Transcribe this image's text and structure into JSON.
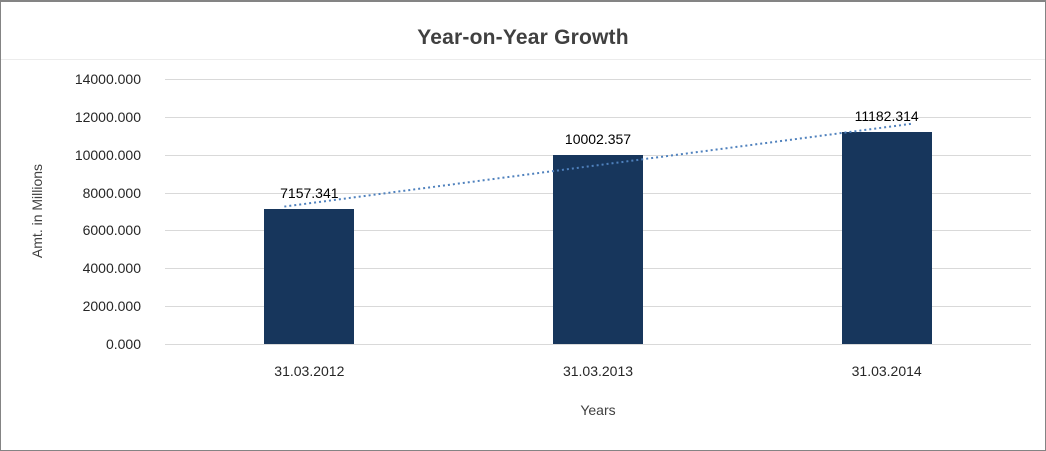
{
  "chart_data": {
    "type": "bar",
    "title": "Year-on-Year Growth",
    "xlabel": "Years",
    "ylabel": "Amt. in Millions",
    "categories": [
      "31.03.2012",
      "31.03.2013",
      "31.03.2014"
    ],
    "values": [
      7157.341,
      10002.357,
      11182.314
    ],
    "data_labels": [
      "7157.341",
      "10002.357",
      "11182.314"
    ],
    "ylim": [
      0,
      14000
    ],
    "ytick_interval": 2000,
    "ytick_labels": [
      "0.000",
      "2000.000",
      "4000.000",
      "6000.000",
      "8000.000",
      "10000.000",
      "12000.000",
      "14000.000"
    ],
    "grid": true,
    "legend": "none",
    "trendline": true,
    "colors": {
      "bar": "#17365C",
      "trendline": "#4F81BD",
      "grid": "#D9D9D9",
      "title": "#404040",
      "text": "#262626"
    }
  }
}
